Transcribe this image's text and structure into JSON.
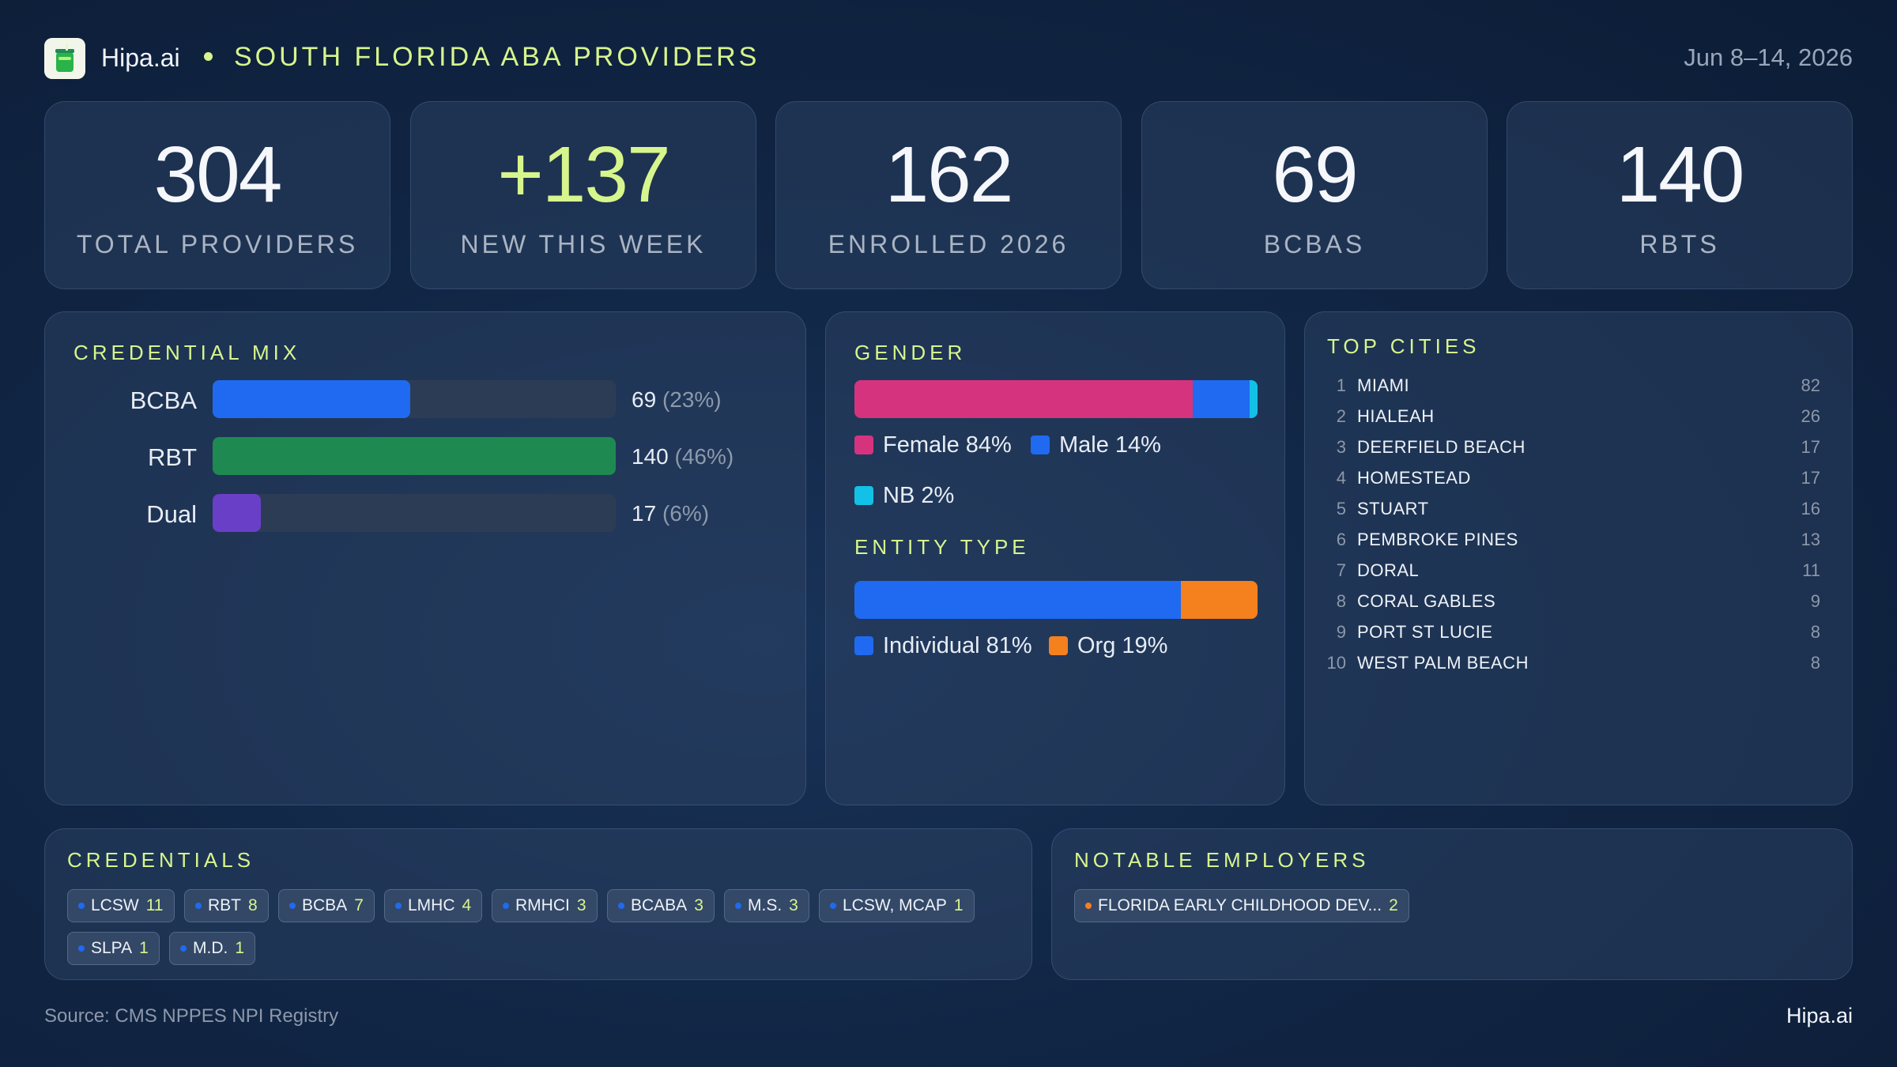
{
  "header": {
    "brand": "Hipa.ai",
    "title": "SOUTH FLORIDA ABA PROVIDERS",
    "date_range": "Jun 8–14, 2026",
    "accent": "#d7f58d"
  },
  "stats": [
    {
      "value": "304",
      "label": "TOTAL  PROVIDERS"
    },
    {
      "value": "+137",
      "label": "NEW THIS WEEK"
    },
    {
      "value": "162",
      "label": "ENROLLED 2026"
    },
    {
      "value": "69",
      "label": "BCBAS"
    },
    {
      "value": "140",
      "label": "RBTS"
    }
  ],
  "credential_mix": {
    "title": "CREDENTIAL MIX",
    "rows": [
      {
        "label": "BCBA",
        "count": "69",
        "pct": "(23%)",
        "share": 0.49,
        "color": "#1f6af0"
      },
      {
        "label": "RBT",
        "count": "140",
        "pct": "(46%)",
        "share": 1.0,
        "color": "#1e8a52"
      },
      {
        "label": "Dual",
        "count": "17",
        "pct": "(6%)",
        "share": 0.12,
        "color": "#6a3fc7"
      }
    ]
  },
  "gender": {
    "title": "GENDER",
    "segments": [
      {
        "label": "Female 84%",
        "share": 84,
        "color": "#d6337e"
      },
      {
        "label": "Male 14%",
        "share": 14,
        "color": "#1f6af0"
      },
      {
        "label": "NB 2%",
        "share": 2,
        "color": "#14c1e6"
      }
    ]
  },
  "entity_type": {
    "title": "ENTITY TYPE",
    "segments": [
      {
        "label": "Individual 81%",
        "share": 81,
        "color": "#1f6af0"
      },
      {
        "label": "Org 19%",
        "share": 19,
        "color": "#f5801e"
      }
    ]
  },
  "top_cities": {
    "title": "TOP CITIES",
    "items": [
      {
        "rank": "1",
        "name": "MIAMI",
        "count": "82"
      },
      {
        "rank": "2",
        "name": "HIALEAH",
        "count": "26"
      },
      {
        "rank": "3",
        "name": "DEERFIELD BEACH",
        "count": "17"
      },
      {
        "rank": "4",
        "name": "HOMESTEAD",
        "count": "17"
      },
      {
        "rank": "5",
        "name": "STUART",
        "count": "16"
      },
      {
        "rank": "6",
        "name": "PEMBROKE PINES",
        "count": "13"
      },
      {
        "rank": "7",
        "name": "DORAL",
        "count": "11"
      },
      {
        "rank": "8",
        "name": "CORAL GABLES",
        "count": "9"
      },
      {
        "rank": "9",
        "name": "PORT ST LUCIE",
        "count": "8"
      },
      {
        "rank": "10",
        "name": "WEST PALM BEACH",
        "count": "8"
      }
    ]
  },
  "credentials": {
    "title": "CREDENTIALS",
    "dot_color": "#1f6af0",
    "chips": [
      {
        "label": "LCSW",
        "count": "11"
      },
      {
        "label": "RBT",
        "count": "8"
      },
      {
        "label": "BCBA",
        "count": "7"
      },
      {
        "label": "LMHC",
        "count": "4"
      },
      {
        "label": "RMHCI",
        "count": "3"
      },
      {
        "label": "BCABA",
        "count": "3"
      },
      {
        "label": "M.S.",
        "count": "3"
      },
      {
        "label": "LCSW, MCAP",
        "count": "1"
      },
      {
        "label": "SLPA",
        "count": "1"
      },
      {
        "label": "M.D.",
        "count": "1"
      }
    ]
  },
  "employers": {
    "title": "NOTABLE  EMPLOYERS",
    "dot_color": "#f5801e",
    "chips": [
      {
        "label": "FLORIDA EARLY CHILDHOOD DEV...",
        "count": "2"
      }
    ]
  },
  "footer": {
    "source": "Source: CMS NPPES NPI Registry",
    "brand": "Hipa.ai"
  }
}
